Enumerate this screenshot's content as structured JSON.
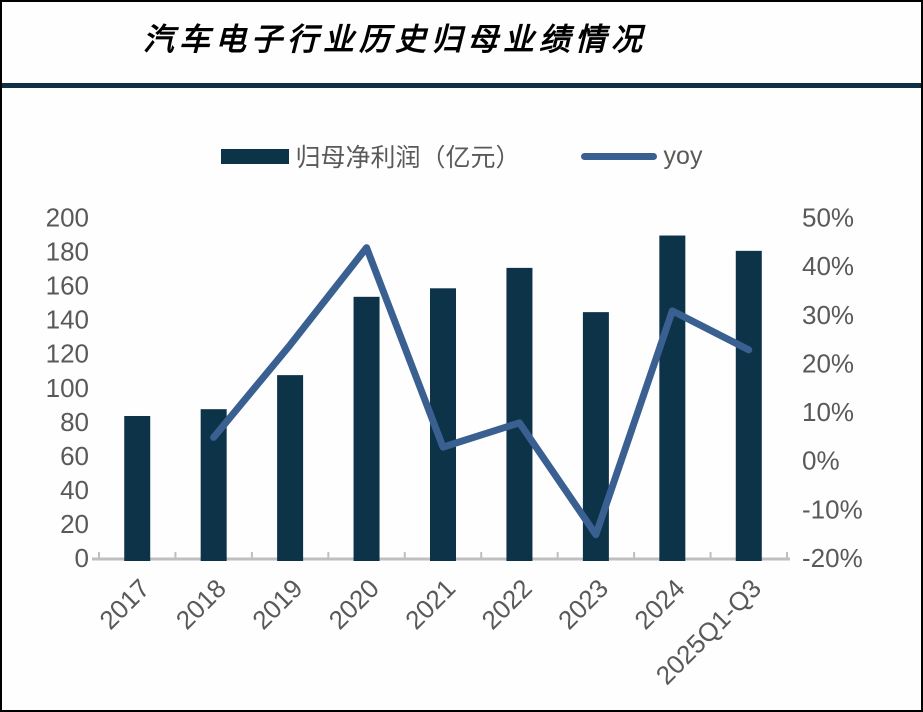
{
  "window": {
    "title": "汽车电子行业历史归母业绩情况"
  },
  "legend": {
    "bar_label": "归母净利润（亿元）",
    "line_label": "yoy"
  },
  "colors": {
    "bar": "#0d3349",
    "line": "#3a5f91",
    "divider": "#0e3046",
    "axis_text": "#595959",
    "axis_line": "#bfbfbf",
    "title_text": "#000000",
    "background": "#fefefe"
  },
  "chart_data": {
    "type": "bar",
    "subtype": "combo-bar-line-dual-axis",
    "title": "汽车电子行业历史归母业绩情况",
    "categories": [
      "2017",
      "2018",
      "2019",
      "2020",
      "2021",
      "2022",
      "2023",
      "2024",
      "2025Q1-Q3"
    ],
    "series": [
      {
        "name": "归母净利润（亿元）",
        "type": "bar",
        "axis": "left",
        "values": [
          84,
          88,
          108,
          154,
          159,
          171,
          145,
          190,
          181
        ]
      },
      {
        "name": "yoy",
        "type": "line",
        "axis": "right",
        "unit": "percent",
        "values": [
          null,
          5,
          24,
          44,
          3,
          8,
          -15,
          31,
          23
        ]
      }
    ],
    "left_axis": {
      "min": 0,
      "max": 200,
      "step": 20,
      "labels": [
        "0",
        "20",
        "40",
        "60",
        "80",
        "100",
        "120",
        "140",
        "160",
        "180",
        "200"
      ]
    },
    "right_axis": {
      "min": -20,
      "max": 50,
      "step": 10,
      "labels": [
        "-20%",
        "-10%",
        "0%",
        "10%",
        "20%",
        "30%",
        "40%",
        "50%"
      ]
    },
    "xlabel": "",
    "ylabel": "",
    "grid": false,
    "legend_position": "top",
    "x_label_rotation": -45
  }
}
